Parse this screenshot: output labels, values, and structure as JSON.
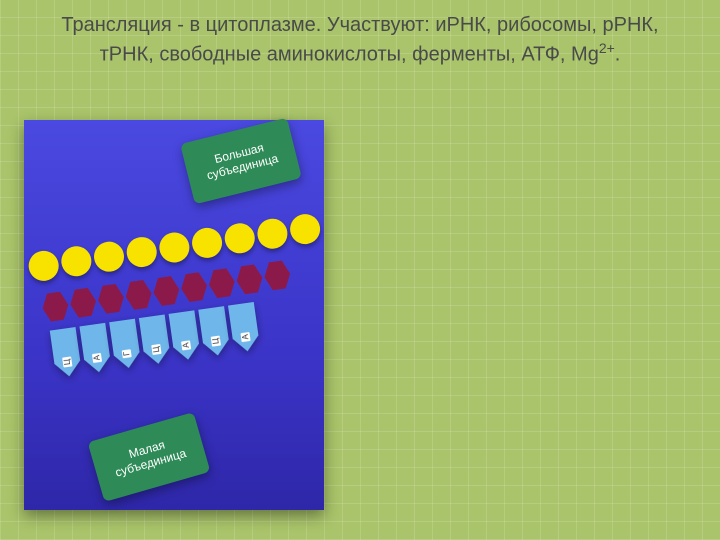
{
  "title_html": "Трансляция  -  в цитоплазме. Участвуют: иРНК, рибосомы, рРНК, тРНК, свободные аминокислоты, ферменты, АТФ, Mg<sup>2+</sup>.",
  "subunits": {
    "large": "Большая\nсубъединица",
    "small": "Малая\nсубъединица"
  },
  "rows": {
    "circle_count": 9,
    "hex_count": 9,
    "tags": [
      "Ц",
      "А",
      "Г",
      "Ц",
      "А",
      "Ц",
      "А"
    ]
  },
  "colors": {
    "bg": "#a9c46a",
    "panel_top": "#4a49e0",
    "panel_bottom": "#2e27a8",
    "circle": "#f7e200",
    "hex": "#8b1a4a",
    "tag": "#6fb7ea",
    "subunit": "#2e8b57",
    "title_text": "#4a4a4a"
  }
}
